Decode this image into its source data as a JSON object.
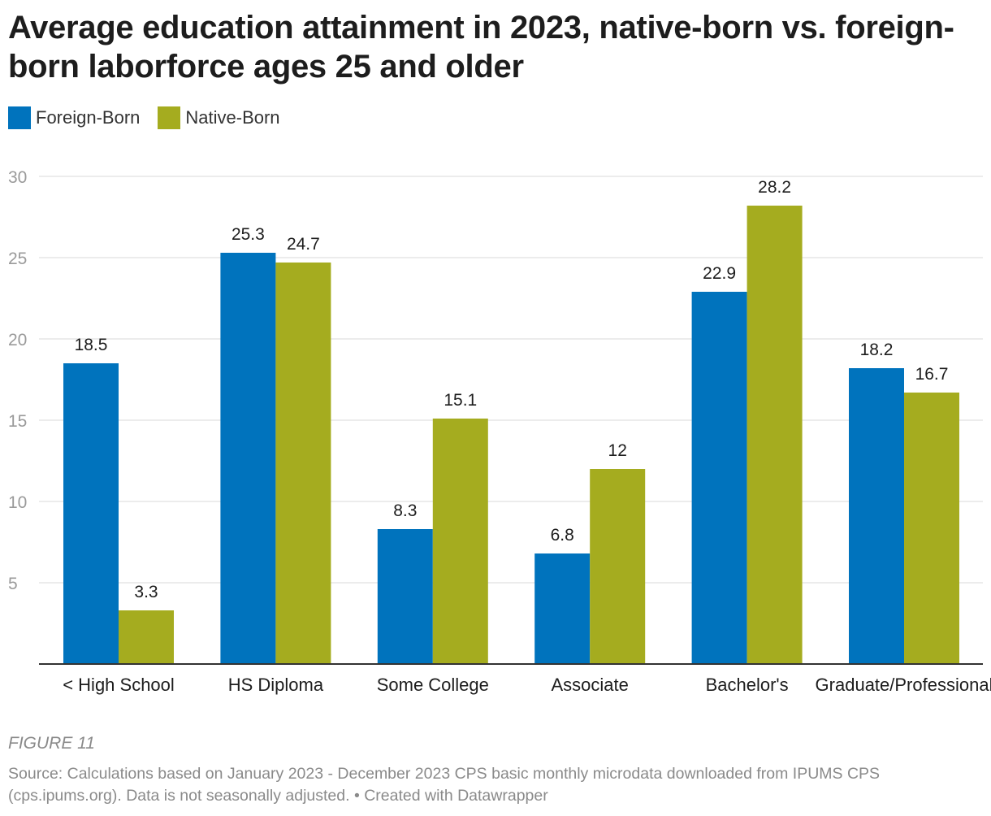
{
  "title": "Average education attainment in 2023, native-born vs. foreign-born laborforce ages 25 and older",
  "legend": [
    {
      "label": "Foreign-Born",
      "color": "#0073bd"
    },
    {
      "label": "Native-Born",
      "color": "#a5ac1f"
    }
  ],
  "chart_data": {
    "type": "bar",
    "title": "Average education attainment in 2023, native-born vs. foreign-born laborforce ages 25 and older",
    "categories": [
      "< High School",
      "HS Diploma",
      "Some College",
      "Associate",
      "Bachelor's",
      "Graduate/Professional"
    ],
    "series": [
      {
        "name": "Foreign-Born",
        "color": "#0073bd",
        "values": [
          18.5,
          25.3,
          8.3,
          6.8,
          22.9,
          18.2
        ],
        "labels": [
          "18.5",
          "25.3",
          "8.3",
          "6.8",
          "22.9",
          "18.2"
        ]
      },
      {
        "name": "Native-Born",
        "color": "#a5ac1f",
        "values": [
          3.3,
          24.7,
          15.1,
          12,
          28.2,
          16.7
        ],
        "labels": [
          "3.3",
          "24.7",
          "15.1",
          "12",
          "28.2",
          "16.7"
        ]
      }
    ],
    "yticks": [
      5,
      10,
      15,
      20,
      25,
      30
    ],
    "ylim": [
      0,
      30
    ],
    "xlabel": "",
    "ylabel": "",
    "grid": true,
    "legend_position": "top-left"
  },
  "figure_label": "FIGURE 11",
  "source": "Source: Calculations based on January 2023 - December 2023 CPS basic monthly microdata downloaded from IPUMS CPS (cps.ipums.org). Data is not seasonally adjusted. • Created with Datawrapper"
}
